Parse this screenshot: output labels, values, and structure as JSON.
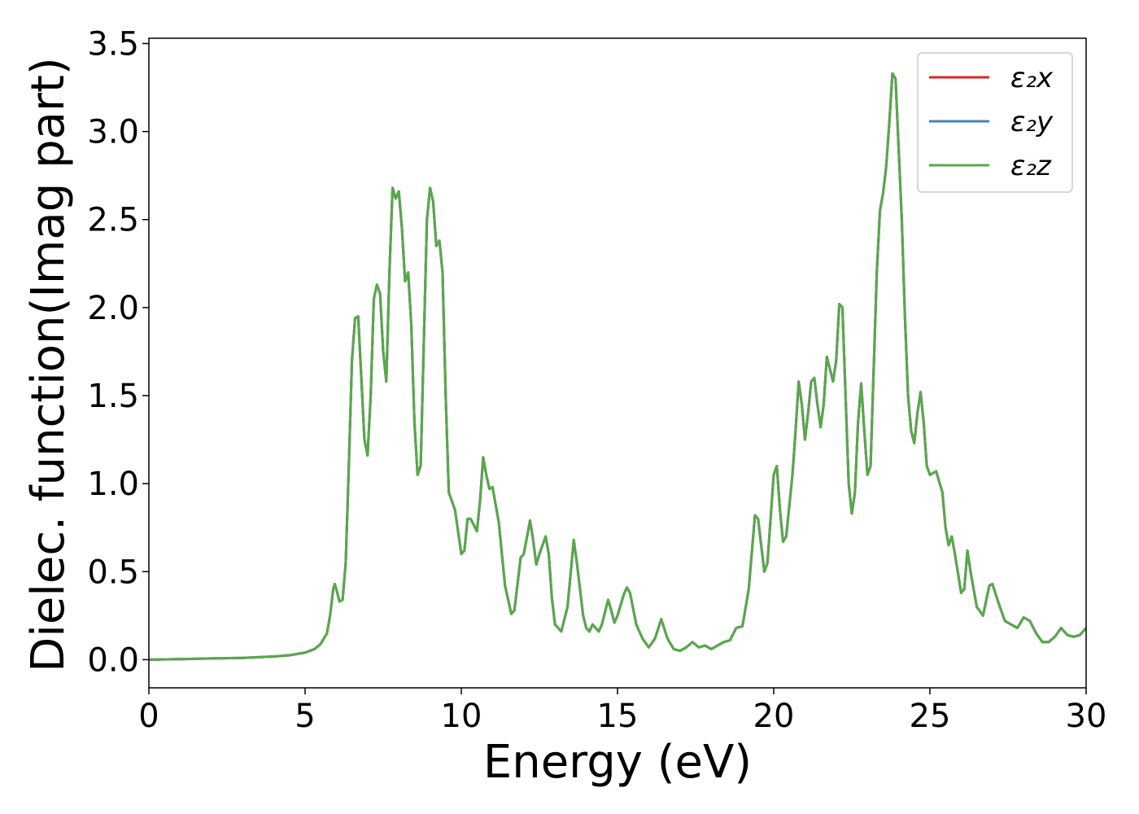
{
  "chart_data": {
    "type": "line",
    "xlabel": "Energy (eV)",
    "ylabel": "Dielec. function(Imag part)",
    "xlim": [
      0,
      30
    ],
    "xticks": [
      0,
      5,
      10,
      15,
      20,
      25,
      30
    ],
    "ylim": [
      -0.16,
      3.53
    ],
    "yticks": [
      {
        "value": 0,
        "label": "0.0"
      },
      0.5,
      {
        "value": 1,
        "label": "1.0"
      },
      1.5,
      {
        "value": 2,
        "label": "2.0"
      },
      2.5,
      {
        "value": 3,
        "label": "3.0"
      },
      3.5
    ],
    "legend": "upper right",
    "x": [
      0,
      1,
      2,
      3,
      4,
      4.5,
      5,
      5.3,
      5.5,
      5.7,
      5.8,
      5.9,
      5.95,
      6.0,
      6.1,
      6.2,
      6.3,
      6.4,
      6.5,
      6.6,
      6.7,
      6.8,
      6.9,
      7.0,
      7.1,
      7.2,
      7.3,
      7.4,
      7.5,
      7.6,
      7.7,
      7.8,
      7.9,
      8.0,
      8.1,
      8.2,
      8.3,
      8.4,
      8.5,
      8.6,
      8.7,
      8.8,
      8.9,
      9.0,
      9.1,
      9.2,
      9.3,
      9.4,
      9.5,
      9.6,
      9.7,
      9.8,
      10.0,
      10.1,
      10.2,
      10.3,
      10.5,
      10.6,
      10.7,
      10.8,
      10.9,
      11.0,
      11.2,
      11.4,
      11.6,
      11.7,
      11.9,
      12.0,
      12.2,
      12.3,
      12.4,
      12.5,
      12.7,
      12.8,
      12.9,
      13.0,
      13.2,
      13.4,
      13.6,
      13.7,
      13.9,
      14.0,
      14.1,
      14.2,
      14.4,
      14.5,
      14.7,
      14.8,
      14.9,
      15.0,
      15.2,
      15.3,
      15.4,
      15.6,
      15.8,
      16.0,
      16.2,
      16.4,
      16.6,
      16.8,
      17.0,
      17.2,
      17.4,
      17.6,
      17.8,
      18.0,
      18.2,
      18.4,
      18.6,
      18.8,
      19.0,
      19.2,
      19.4,
      19.5,
      19.7,
      19.8,
      20.0,
      20.1,
      20.2,
      20.3,
      20.4,
      20.6,
      20.7,
      20.8,
      20.9,
      21.0,
      21.1,
      21.2,
      21.3,
      21.4,
      21.5,
      21.6,
      21.7,
      21.8,
      21.9,
      22.0,
      22.1,
      22.2,
      22.3,
      22.4,
      22.5,
      22.6,
      22.7,
      22.8,
      22.9,
      23.0,
      23.1,
      23.2,
      23.3,
      23.4,
      23.5,
      23.6,
      23.7,
      23.8,
      23.9,
      24.0,
      24.1,
      24.2,
      24.3,
      24.4,
      24.5,
      24.6,
      24.7,
      24.8,
      24.9,
      25.0,
      25.2,
      25.4,
      25.5,
      25.6,
      25.7,
      25.8,
      26.0,
      26.1,
      26.2,
      26.3,
      26.5,
      26.7,
      26.9,
      27.0,
      27.2,
      27.4,
      27.6,
      27.8,
      28.0,
      28.2,
      28.4,
      28.6,
      28.8,
      29.0,
      29.2,
      29.4,
      29.6,
      29.8,
      30.0
    ],
    "series": [
      {
        "name": "ε₂x",
        "color": "#d62728",
        "values": [
          0.0,
          0.003,
          0.007,
          0.01,
          0.018,
          0.025,
          0.04,
          0.06,
          0.09,
          0.15,
          0.25,
          0.4,
          0.43,
          0.4,
          0.33,
          0.34,
          0.55,
          1.1,
          1.7,
          1.94,
          1.95,
          1.6,
          1.25,
          1.16,
          1.5,
          2.05,
          2.13,
          2.08,
          1.75,
          1.58,
          2.2,
          2.68,
          2.62,
          2.66,
          2.45,
          2.15,
          2.2,
          1.9,
          1.35,
          1.05,
          1.1,
          1.8,
          2.5,
          2.68,
          2.6,
          2.35,
          2.38,
          2.2,
          1.5,
          0.95,
          0.9,
          0.85,
          0.6,
          0.62,
          0.8,
          0.8,
          0.73,
          0.9,
          1.15,
          1.05,
          0.97,
          0.98,
          0.78,
          0.42,
          0.26,
          0.28,
          0.58,
          0.6,
          0.79,
          0.68,
          0.54,
          0.6,
          0.7,
          0.6,
          0.35,
          0.2,
          0.16,
          0.3,
          0.68,
          0.55,
          0.25,
          0.18,
          0.16,
          0.2,
          0.16,
          0.2,
          0.34,
          0.28,
          0.21,
          0.25,
          0.37,
          0.41,
          0.38,
          0.2,
          0.12,
          0.07,
          0.12,
          0.23,
          0.12,
          0.06,
          0.05,
          0.07,
          0.1,
          0.07,
          0.08,
          0.06,
          0.08,
          0.1,
          0.11,
          0.18,
          0.19,
          0.4,
          0.82,
          0.8,
          0.5,
          0.55,
          1.05,
          1.1,
          0.85,
          0.67,
          0.7,
          1.05,
          1.3,
          1.58,
          1.45,
          1.25,
          1.4,
          1.58,
          1.6,
          1.45,
          1.32,
          1.45,
          1.72,
          1.65,
          1.58,
          1.7,
          2.02,
          2.0,
          1.5,
          1.0,
          0.83,
          0.95,
          1.35,
          1.57,
          1.3,
          1.05,
          1.1,
          1.65,
          2.2,
          2.55,
          2.65,
          2.8,
          3.05,
          3.33,
          3.3,
          2.9,
          2.5,
          1.95,
          1.5,
          1.3,
          1.23,
          1.4,
          1.52,
          1.35,
          1.1,
          1.05,
          1.07,
          0.95,
          0.75,
          0.65,
          0.7,
          0.6,
          0.38,
          0.4,
          0.62,
          0.5,
          0.3,
          0.25,
          0.42,
          0.43,
          0.32,
          0.22,
          0.2,
          0.18,
          0.24,
          0.22,
          0.15,
          0.1,
          0.1,
          0.13,
          0.18,
          0.14,
          0.13,
          0.14,
          0.18
        ]
      },
      {
        "name": "ε₂y",
        "color": "#4682b4",
        "values": [
          0.0,
          0.003,
          0.007,
          0.01,
          0.018,
          0.025,
          0.04,
          0.06,
          0.09,
          0.15,
          0.25,
          0.4,
          0.43,
          0.4,
          0.33,
          0.34,
          0.55,
          1.1,
          1.7,
          1.94,
          1.95,
          1.6,
          1.25,
          1.16,
          1.5,
          2.05,
          2.13,
          2.08,
          1.75,
          1.58,
          2.2,
          2.68,
          2.62,
          2.66,
          2.45,
          2.15,
          2.2,
          1.9,
          1.35,
          1.05,
          1.1,
          1.8,
          2.5,
          2.68,
          2.6,
          2.35,
          2.38,
          2.2,
          1.5,
          0.95,
          0.9,
          0.85,
          0.6,
          0.62,
          0.8,
          0.8,
          0.73,
          0.9,
          1.15,
          1.05,
          0.97,
          0.98,
          0.78,
          0.42,
          0.26,
          0.28,
          0.58,
          0.6,
          0.79,
          0.68,
          0.54,
          0.6,
          0.7,
          0.6,
          0.35,
          0.2,
          0.16,
          0.3,
          0.68,
          0.55,
          0.25,
          0.18,
          0.16,
          0.2,
          0.16,
          0.2,
          0.34,
          0.28,
          0.21,
          0.25,
          0.37,
          0.41,
          0.38,
          0.2,
          0.12,
          0.07,
          0.12,
          0.23,
          0.12,
          0.06,
          0.05,
          0.07,
          0.1,
          0.07,
          0.08,
          0.06,
          0.08,
          0.1,
          0.11,
          0.18,
          0.19,
          0.4,
          0.82,
          0.8,
          0.5,
          0.55,
          1.05,
          1.1,
          0.85,
          0.67,
          0.7,
          1.05,
          1.3,
          1.58,
          1.45,
          1.25,
          1.4,
          1.58,
          1.6,
          1.45,
          1.32,
          1.45,
          1.72,
          1.65,
          1.58,
          1.7,
          2.02,
          2.0,
          1.5,
          1.0,
          0.83,
          0.95,
          1.35,
          1.57,
          1.3,
          1.05,
          1.1,
          1.65,
          2.2,
          2.55,
          2.65,
          2.8,
          3.05,
          3.33,
          3.3,
          2.9,
          2.5,
          1.95,
          1.5,
          1.3,
          1.23,
          1.4,
          1.52,
          1.35,
          1.1,
          1.05,
          1.07,
          0.95,
          0.75,
          0.65,
          0.7,
          0.6,
          0.38,
          0.4,
          0.62,
          0.5,
          0.3,
          0.25,
          0.42,
          0.43,
          0.32,
          0.22,
          0.2,
          0.18,
          0.24,
          0.22,
          0.15,
          0.1,
          0.1,
          0.13,
          0.18,
          0.14,
          0.13,
          0.14,
          0.18
        ]
      },
      {
        "name": "ε₂z",
        "color": "#59a84b",
        "values": [
          0.0,
          0.003,
          0.007,
          0.01,
          0.018,
          0.025,
          0.04,
          0.06,
          0.09,
          0.15,
          0.25,
          0.4,
          0.43,
          0.4,
          0.33,
          0.34,
          0.55,
          1.1,
          1.7,
          1.94,
          1.95,
          1.6,
          1.25,
          1.16,
          1.5,
          2.05,
          2.13,
          2.08,
          1.75,
          1.58,
          2.2,
          2.68,
          2.62,
          2.66,
          2.45,
          2.15,
          2.2,
          1.9,
          1.35,
          1.05,
          1.1,
          1.8,
          2.5,
          2.68,
          2.6,
          2.35,
          2.38,
          2.2,
          1.5,
          0.95,
          0.9,
          0.85,
          0.6,
          0.62,
          0.8,
          0.8,
          0.73,
          0.9,
          1.15,
          1.05,
          0.97,
          0.98,
          0.78,
          0.42,
          0.26,
          0.28,
          0.58,
          0.6,
          0.79,
          0.68,
          0.54,
          0.6,
          0.7,
          0.6,
          0.35,
          0.2,
          0.16,
          0.3,
          0.68,
          0.55,
          0.25,
          0.18,
          0.16,
          0.2,
          0.16,
          0.2,
          0.34,
          0.28,
          0.21,
          0.25,
          0.37,
          0.41,
          0.38,
          0.2,
          0.12,
          0.07,
          0.12,
          0.23,
          0.12,
          0.06,
          0.05,
          0.07,
          0.1,
          0.07,
          0.08,
          0.06,
          0.08,
          0.1,
          0.11,
          0.18,
          0.19,
          0.4,
          0.82,
          0.8,
          0.5,
          0.55,
          1.05,
          1.1,
          0.85,
          0.67,
          0.7,
          1.05,
          1.3,
          1.58,
          1.45,
          1.25,
          1.4,
          1.58,
          1.6,
          1.45,
          1.32,
          1.45,
          1.72,
          1.65,
          1.58,
          1.7,
          2.02,
          2.0,
          1.5,
          1.0,
          0.83,
          0.95,
          1.35,
          1.57,
          1.3,
          1.05,
          1.1,
          1.65,
          2.2,
          2.55,
          2.65,
          2.8,
          3.05,
          3.33,
          3.3,
          2.9,
          2.5,
          1.95,
          1.5,
          1.3,
          1.23,
          1.4,
          1.52,
          1.35,
          1.1,
          1.05,
          1.07,
          0.95,
          0.75,
          0.65,
          0.7,
          0.6,
          0.38,
          0.4,
          0.62,
          0.5,
          0.3,
          0.25,
          0.42,
          0.43,
          0.32,
          0.22,
          0.2,
          0.18,
          0.24,
          0.22,
          0.15,
          0.1,
          0.1,
          0.13,
          0.18,
          0.14,
          0.13,
          0.14,
          0.18
        ]
      }
    ]
  }
}
